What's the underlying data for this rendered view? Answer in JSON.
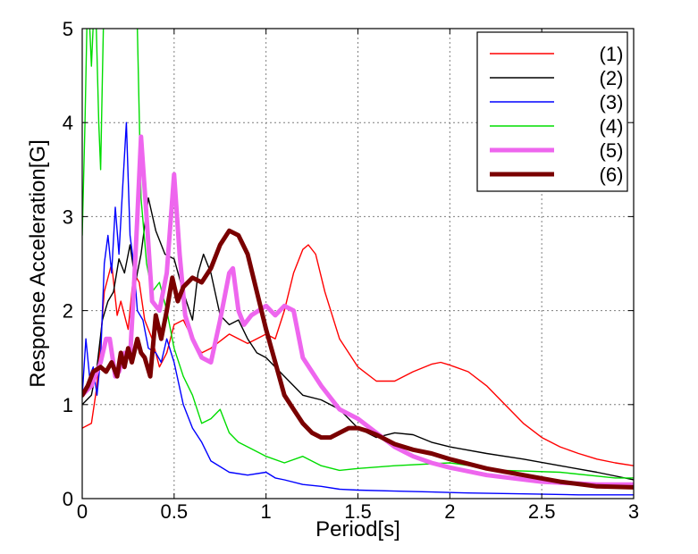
{
  "chart_data": {
    "type": "line",
    "title": "",
    "xlabel": "Period[s]",
    "ylabel": "Response Acceleration[G]",
    "xlim": [
      0,
      3
    ],
    "ylim": [
      0,
      5
    ],
    "xticks": [
      0,
      0.5,
      1,
      1.5,
      2,
      2.5,
      3
    ],
    "yticks": [
      0,
      1,
      2,
      3,
      4,
      5
    ],
    "xtick_labels": [
      "0",
      "0.5",
      "1",
      "1.5",
      "2",
      "2.5",
      "3"
    ],
    "ytick_labels": [
      "0",
      "1",
      "2",
      "3",
      "4",
      "5"
    ],
    "grid": true,
    "legend_position": "top-right",
    "series": [
      {
        "name": "(1)",
        "color": "#ff0000",
        "weight": "thin",
        "x": [
          0,
          0.05,
          0.08,
          0.12,
          0.16,
          0.19,
          0.21,
          0.25,
          0.28,
          0.31,
          0.34,
          0.38,
          0.42,
          0.46,
          0.5,
          0.55,
          0.6,
          0.65,
          0.7,
          0.8,
          0.9,
          1.0,
          1.05,
          1.1,
          1.15,
          1.2,
          1.23,
          1.27,
          1.32,
          1.4,
          1.5,
          1.6,
          1.7,
          1.8,
          1.9,
          1.95,
          2.0,
          2.1,
          2.2,
          2.3,
          2.4,
          2.5,
          2.6,
          2.7,
          2.8,
          2.9,
          3.0
        ],
        "y": [
          0.75,
          0.8,
          1.2,
          2.2,
          2.5,
          1.95,
          2.1,
          1.8,
          2.4,
          2.3,
          1.9,
          1.7,
          1.4,
          1.55,
          1.85,
          1.9,
          1.7,
          1.55,
          1.6,
          1.75,
          1.65,
          1.75,
          1.7,
          2.0,
          2.4,
          2.65,
          2.7,
          2.6,
          2.2,
          1.7,
          1.4,
          1.25,
          1.25,
          1.35,
          1.43,
          1.45,
          1.42,
          1.35,
          1.2,
          1.0,
          0.8,
          0.65,
          0.55,
          0.48,
          0.42,
          0.38,
          0.35
        ]
      },
      {
        "name": "(2)",
        "color": "#000000",
        "weight": "thin",
        "x": [
          0,
          0.05,
          0.08,
          0.11,
          0.14,
          0.17,
          0.2,
          0.23,
          0.26,
          0.29,
          0.32,
          0.36,
          0.4,
          0.45,
          0.5,
          0.55,
          0.6,
          0.63,
          0.66,
          0.7,
          0.75,
          0.8,
          0.85,
          0.9,
          0.95,
          1.0,
          1.1,
          1.2,
          1.3,
          1.4,
          1.5,
          1.6,
          1.7,
          1.8,
          1.9,
          2.0,
          2.2,
          2.4,
          2.6,
          2.8,
          3.0
        ],
        "y": [
          1.0,
          1.1,
          1.4,
          1.9,
          2.1,
          2.2,
          2.55,
          2.4,
          2.7,
          2.3,
          2.6,
          3.2,
          2.85,
          2.6,
          2.55,
          2.2,
          1.9,
          2.4,
          2.6,
          2.4,
          1.95,
          1.85,
          1.9,
          1.7,
          1.55,
          1.5,
          1.3,
          1.1,
          1.05,
          0.95,
          0.75,
          0.65,
          0.7,
          0.68,
          0.6,
          0.55,
          0.48,
          0.42,
          0.35,
          0.28,
          0.2
        ]
      },
      {
        "name": "(3)",
        "color": "#0000ff",
        "weight": "thin",
        "x": [
          0,
          0.02,
          0.04,
          0.06,
          0.08,
          0.1,
          0.12,
          0.14,
          0.16,
          0.18,
          0.2,
          0.22,
          0.24,
          0.26,
          0.28,
          0.3,
          0.33,
          0.36,
          0.4,
          0.43,
          0.46,
          0.5,
          0.55,
          0.6,
          0.65,
          0.7,
          0.8,
          0.9,
          1.0,
          1.05,
          1.1,
          1.2,
          1.3,
          1.4,
          1.5,
          1.7,
          1.9,
          2.1,
          2.4,
          2.7,
          3.0
        ],
        "y": [
          1.1,
          1.7,
          1.3,
          1.4,
          1.1,
          1.5,
          2.5,
          2.8,
          2.4,
          3.1,
          2.6,
          3.3,
          4.0,
          2.8,
          2.5,
          2.0,
          1.9,
          1.6,
          1.55,
          1.45,
          1.7,
          1.45,
          1.0,
          0.75,
          0.6,
          0.4,
          0.28,
          0.25,
          0.28,
          0.22,
          0.2,
          0.15,
          0.13,
          0.1,
          0.09,
          0.08,
          0.07,
          0.06,
          0.05,
          0.04,
          0.04
        ]
      },
      {
        "name": "(4)",
        "color": "#00dd00",
        "weight": "thin",
        "x": [
          0,
          0.015,
          0.03,
          0.05,
          0.07,
          0.09,
          0.1,
          0.11,
          0.12,
          0.14,
          0.17,
          0.2,
          0.24,
          0.28,
          0.3,
          0.32,
          0.35,
          0.38,
          0.42,
          0.46,
          0.5,
          0.55,
          0.6,
          0.65,
          0.7,
          0.75,
          0.8,
          0.85,
          0.9,
          1.0,
          1.1,
          1.2,
          1.3,
          1.4,
          1.5,
          1.7,
          2.0,
          2.3,
          2.6,
          2.9,
          3.0
        ],
        "y": [
          2.8,
          4.0,
          5.5,
          4.6,
          5.5,
          4.0,
          3.5,
          4.5,
          5.5,
          5.5,
          5.5,
          5.5,
          5.5,
          5.5,
          5.0,
          3.2,
          2.5,
          2.2,
          2.3,
          2.0,
          1.6,
          1.3,
          1.1,
          0.8,
          0.85,
          0.95,
          0.7,
          0.6,
          0.55,
          0.45,
          0.38,
          0.45,
          0.35,
          0.3,
          0.32,
          0.35,
          0.38,
          0.3,
          0.28,
          0.22,
          0.22
        ]
      },
      {
        "name": "(5)",
        "color": "#ee66ee",
        "weight": "thick",
        "x": [
          0,
          0.05,
          0.1,
          0.13,
          0.15,
          0.18,
          0.2,
          0.23,
          0.26,
          0.28,
          0.3,
          0.32,
          0.35,
          0.38,
          0.42,
          0.46,
          0.5,
          0.53,
          0.56,
          0.6,
          0.65,
          0.7,
          0.75,
          0.8,
          0.82,
          0.85,
          0.88,
          0.92,
          0.96,
          1.0,
          1.05,
          1.1,
          1.15,
          1.2,
          1.3,
          1.4,
          1.5,
          1.6,
          1.7,
          1.8,
          1.9,
          2.0,
          2.2,
          2.5,
          2.8,
          3.0
        ],
        "y": [
          1.1,
          1.2,
          1.45,
          1.7,
          1.7,
          1.3,
          1.35,
          1.55,
          1.5,
          2.2,
          3.0,
          3.85,
          3.0,
          2.1,
          2.0,
          2.4,
          3.45,
          2.6,
          1.95,
          1.7,
          1.5,
          1.45,
          1.9,
          2.4,
          2.45,
          2.0,
          1.85,
          1.95,
          2.0,
          2.05,
          1.95,
          2.05,
          2.0,
          1.5,
          1.2,
          0.95,
          0.85,
          0.7,
          0.55,
          0.45,
          0.38,
          0.33,
          0.25,
          0.18,
          0.15,
          0.15
        ]
      },
      {
        "name": "(6)",
        "color": "#7a0000",
        "weight": "thick",
        "x": [
          0,
          0.03,
          0.06,
          0.1,
          0.13,
          0.16,
          0.19,
          0.21,
          0.23,
          0.25,
          0.27,
          0.3,
          0.32,
          0.34,
          0.37,
          0.4,
          0.43,
          0.46,
          0.49,
          0.52,
          0.55,
          0.6,
          0.65,
          0.7,
          0.75,
          0.8,
          0.85,
          0.9,
          0.95,
          1.0,
          1.05,
          1.1,
          1.15,
          1.2,
          1.25,
          1.3,
          1.35,
          1.4,
          1.45,
          1.5,
          1.55,
          1.6,
          1.7,
          1.8,
          1.9,
          2.0,
          2.2,
          2.4,
          2.6,
          2.8,
          3.0
        ],
        "y": [
          1.1,
          1.2,
          1.35,
          1.4,
          1.35,
          1.45,
          1.3,
          1.55,
          1.4,
          1.6,
          1.45,
          1.7,
          1.55,
          1.5,
          1.3,
          1.95,
          1.7,
          2.0,
          2.35,
          2.1,
          2.25,
          2.35,
          2.3,
          2.45,
          2.7,
          2.85,
          2.8,
          2.6,
          2.2,
          1.8,
          1.45,
          1.1,
          0.95,
          0.8,
          0.7,
          0.65,
          0.65,
          0.7,
          0.75,
          0.75,
          0.72,
          0.68,
          0.58,
          0.52,
          0.48,
          0.42,
          0.32,
          0.25,
          0.18,
          0.13,
          0.12
        ]
      }
    ]
  }
}
